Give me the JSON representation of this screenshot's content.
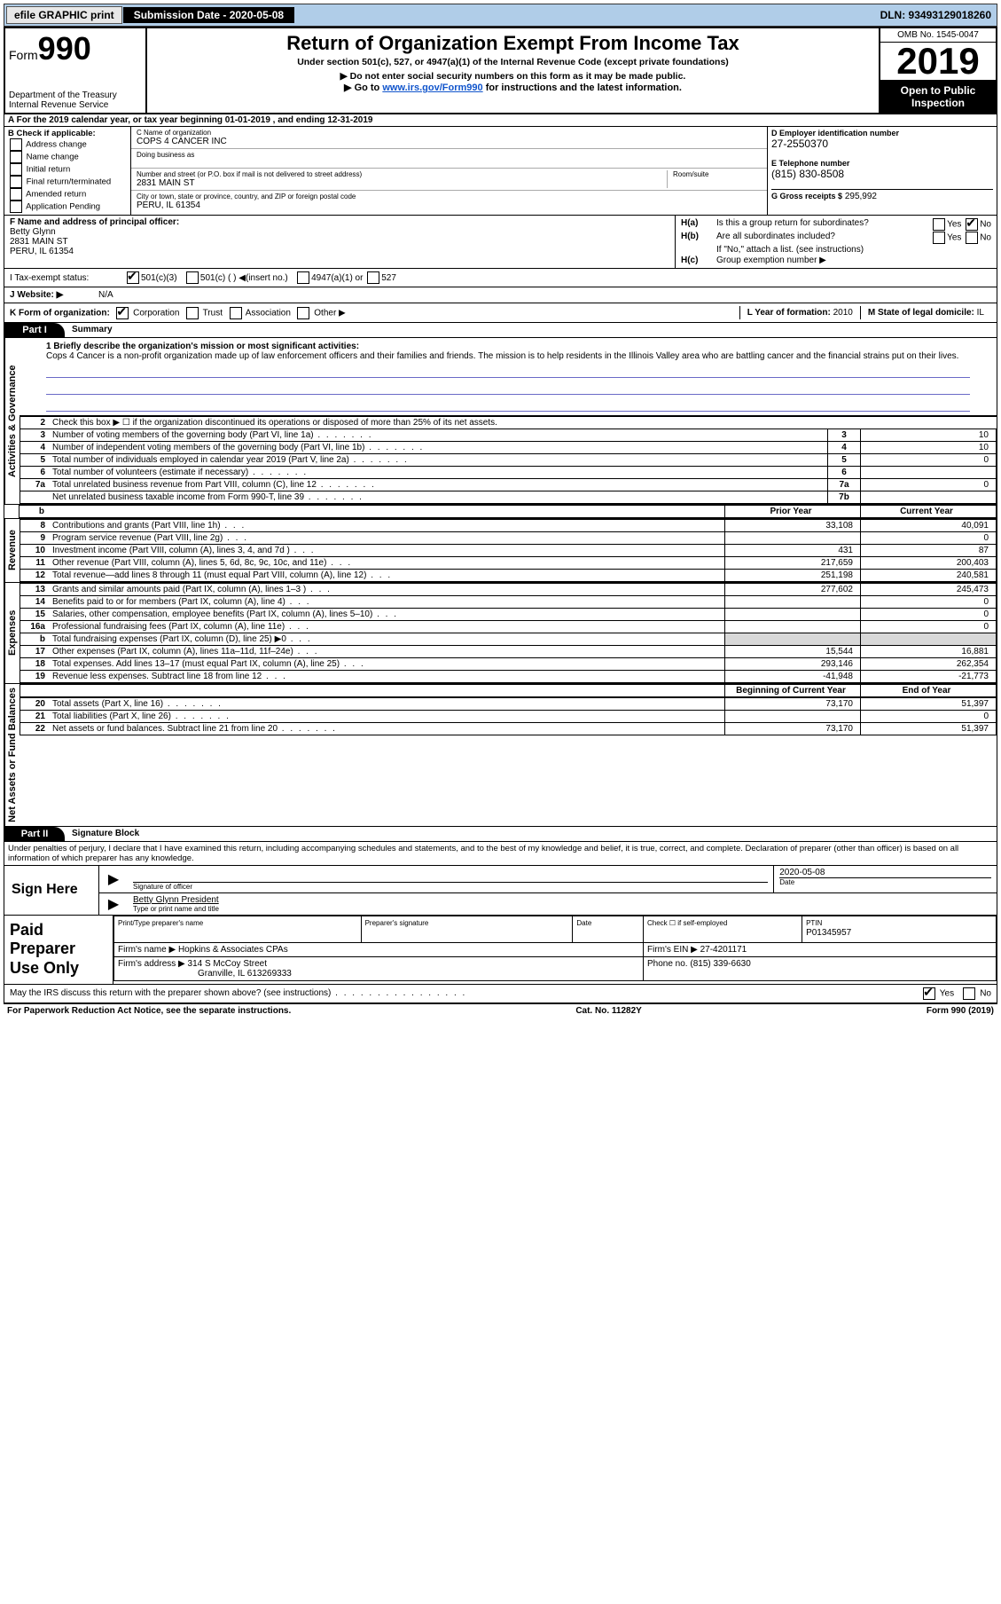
{
  "topbar": {
    "efile": "efile GRAPHIC print",
    "sub_label": "Submission Date - 2020-05-08",
    "dln": "DLN: 93493129018260"
  },
  "header": {
    "form_label": "Form",
    "form_no": "990",
    "dept": "Department of the Treasury",
    "irs": "Internal Revenue Service",
    "title": "Return of Organization Exempt From Income Tax",
    "subtitle": "Under section 501(c), 527, or 4947(a)(1) of the Internal Revenue Code (except private foundations)",
    "note1": "▶ Do not enter social security numbers on this form as it may be made public.",
    "note2_pre": "▶ Go to ",
    "note2_link": "www.irs.gov/Form990",
    "note2_post": " for instructions and the latest information.",
    "omb": "OMB No. 1545-0047",
    "year": "2019",
    "open": "Open to Public Inspection"
  },
  "row_a": "A  For the 2019 calendar year, or tax year beginning 01-01-2019   , and ending 12-31-2019",
  "col_b": {
    "title": "B Check if applicable:",
    "items": [
      "Address change",
      "Name change",
      "Initial return",
      "Final return/terminated",
      "Amended return",
      "Application Pending"
    ]
  },
  "col_c": {
    "name_lbl": "C Name of organization",
    "name": "COPS 4 CANCER INC",
    "dba_lbl": "Doing business as",
    "dba": "",
    "addr_lbl": "Number and street (or P.O. box if mail is not delivered to street address)",
    "room_lbl": "Room/suite",
    "addr": "2831 MAIN ST",
    "city_lbl": "City or town, state or province, country, and ZIP or foreign postal code",
    "city": "PERU, IL  61354"
  },
  "col_d": {
    "ein_lbl": "D Employer identification number",
    "ein": "27-2550370",
    "tel_lbl": "E Telephone number",
    "tel": "(815) 830-8508",
    "gross_lbl": "G Gross receipts $",
    "gross": "295,992"
  },
  "col_f": {
    "label": "F  Name and address of principal officer:",
    "name": "Betty Glynn",
    "addr1": "2831 MAIN ST",
    "addr2": "PERU, IL  61354"
  },
  "col_h": {
    "ha_lbl": "H(a)",
    "ha_txt": "Is this a group return for subordinates?",
    "hb_lbl": "H(b)",
    "hb_txt": "Are all subordinates included?",
    "hb_note": "If \"No,\" attach a list. (see instructions)",
    "hc_lbl": "H(c)",
    "hc_txt": "Group exemption number ▶",
    "yes": "Yes",
    "no": "No"
  },
  "row_i": {
    "label": "I   Tax-exempt status:",
    "opt1": "501(c)(3)",
    "opt2": "501(c) (  ) ◀(insert no.)",
    "opt3": "4947(a)(1) or",
    "opt4": "527"
  },
  "row_j": {
    "label": "J   Website: ▶",
    "value": "N/A"
  },
  "row_k": {
    "label": "K Form of organization:",
    "opts": [
      "Corporation",
      "Trust",
      "Association",
      "Other ▶"
    ],
    "l_label": "L Year of formation:",
    "l_val": "2010",
    "m_label": "M State of legal domicile:",
    "m_val": "IL"
  },
  "parts": {
    "p1": "Part I",
    "p1_title": "Summary",
    "p2": "Part II",
    "p2_title": "Signature Block"
  },
  "summary": {
    "briefly_lbl": "1   Briefly describe the organization's mission or most significant activities:",
    "briefly": "Cops 4 Cancer is a non-profit organization made up of law enforcement officers and their families and friends. The mission is to help residents in the Illinois Valley area who are battling cancer and the financial strains put on their lives.",
    "line2": "Check this box ▶ ☐  if the organization discontinued its operations or disposed of more than 25% of its net assets.",
    "vlabels": {
      "ag": "Activities & Governance",
      "rev": "Revenue",
      "exp": "Expenses",
      "na": "Net Assets or Fund Balances"
    },
    "hdr_prior": "Prior Year",
    "hdr_curr": "Current Year",
    "hdr_boy": "Beginning of Current Year",
    "hdr_eoy": "End of Year",
    "rows_ag": [
      {
        "n": "3",
        "d": "Number of voting members of the governing body (Part VI, line 1a)",
        "box": "3",
        "v": "10"
      },
      {
        "n": "4",
        "d": "Number of independent voting members of the governing body (Part VI, line 1b)",
        "box": "4",
        "v": "10"
      },
      {
        "n": "5",
        "d": "Total number of individuals employed in calendar year 2019 (Part V, line 2a)",
        "box": "5",
        "v": "0"
      },
      {
        "n": "6",
        "d": "Total number of volunteers (estimate if necessary)",
        "box": "6",
        "v": ""
      },
      {
        "n": "7a",
        "d": "Total unrelated business revenue from Part VIII, column (C), line 12",
        "box": "7a",
        "v": "0"
      },
      {
        "n": "",
        "d": "Net unrelated business taxable income from Form 990-T, line 39",
        "box": "7b",
        "v": ""
      }
    ],
    "rows_b": {
      "n": "b",
      "d": ""
    },
    "rows_rev": [
      {
        "n": "8",
        "d": "Contributions and grants (Part VIII, line 1h)",
        "p": "33,108",
        "c": "40,091"
      },
      {
        "n": "9",
        "d": "Program service revenue (Part VIII, line 2g)",
        "p": "",
        "c": "0"
      },
      {
        "n": "10",
        "d": "Investment income (Part VIII, column (A), lines 3, 4, and 7d )",
        "p": "431",
        "c": "87"
      },
      {
        "n": "11",
        "d": "Other revenue (Part VIII, column (A), lines 5, 6d, 8c, 9c, 10c, and 11e)",
        "p": "217,659",
        "c": "200,403"
      },
      {
        "n": "12",
        "d": "Total revenue—add lines 8 through 11 (must equal Part VIII, column (A), line 12)",
        "p": "251,198",
        "c": "240,581"
      }
    ],
    "rows_exp": [
      {
        "n": "13",
        "d": "Grants and similar amounts paid (Part IX, column (A), lines 1–3 )",
        "p": "277,602",
        "c": "245,473"
      },
      {
        "n": "14",
        "d": "Benefits paid to or for members (Part IX, column (A), line 4)",
        "p": "",
        "c": "0"
      },
      {
        "n": "15",
        "d": "Salaries, other compensation, employee benefits (Part IX, column (A), lines 5–10)",
        "p": "",
        "c": "0"
      },
      {
        "n": "16a",
        "d": "Professional fundraising fees (Part IX, column (A), line 11e)",
        "p": "",
        "c": "0"
      },
      {
        "n": "b",
        "d": "Total fundraising expenses (Part IX, column (D), line 25) ▶0",
        "p": "shade",
        "c": "shade"
      },
      {
        "n": "17",
        "d": "Other expenses (Part IX, column (A), lines 11a–11d, 11f–24e)",
        "p": "15,544",
        "c": "16,881"
      },
      {
        "n": "18",
        "d": "Total expenses. Add lines 13–17 (must equal Part IX, column (A), line 25)",
        "p": "293,146",
        "c": "262,354"
      },
      {
        "n": "19",
        "d": "Revenue less expenses. Subtract line 18 from line 12",
        "p": "-41,948",
        "c": "-21,773"
      }
    ],
    "rows_na": [
      {
        "n": "20",
        "d": "Total assets (Part X, line 16)",
        "p": "73,170",
        "c": "51,397"
      },
      {
        "n": "21",
        "d": "Total liabilities (Part X, line 26)",
        "p": "",
        "c": "0"
      },
      {
        "n": "22",
        "d": "Net assets or fund balances. Subtract line 21 from line 20",
        "p": "73,170",
        "c": "51,397"
      }
    ]
  },
  "penalties": "Under penalties of perjury, I declare that I have examined this return, including accompanying schedules and statements, and to the best of my knowledge and belief, it is true, correct, and complete. Declaration of preparer (other than officer) is based on all information of which preparer has any knowledge.",
  "sign": {
    "here": "Sign Here",
    "sig_lbl": "Signature of officer",
    "date_lbl": "Date",
    "date": "2020-05-08",
    "name": "Betty Glynn  President",
    "name_lbl": "Type or print name and title"
  },
  "preparer": {
    "title": "Paid Preparer Use Only",
    "pt_name_lbl": "Print/Type preparer's name",
    "sig_lbl": "Preparer's signature",
    "date_lbl": "Date",
    "check_lbl": "Check ☐ if self-employed",
    "ptin_lbl": "PTIN",
    "ptin": "P01345957",
    "firm_name_lbl": "Firm's name    ▶",
    "firm_name": "Hopkins & Associates CPAs",
    "firm_ein_lbl": "Firm's EIN ▶",
    "firm_ein": "27-4201171",
    "firm_addr_lbl": "Firm's address ▶",
    "firm_addr1": "314 S McCoy Street",
    "firm_addr2": "Granville, IL  613269333",
    "phone_lbl": "Phone no.",
    "phone": "(815) 339-6630"
  },
  "discuss": {
    "text": "May the IRS discuss this return with the preparer shown above? (see instructions)",
    "yes": "Yes",
    "no": "No"
  },
  "footer": {
    "left": "For Paperwork Reduction Act Notice, see the separate instructions.",
    "mid": "Cat. No. 11282Y",
    "right": "Form 990 (2019)"
  }
}
